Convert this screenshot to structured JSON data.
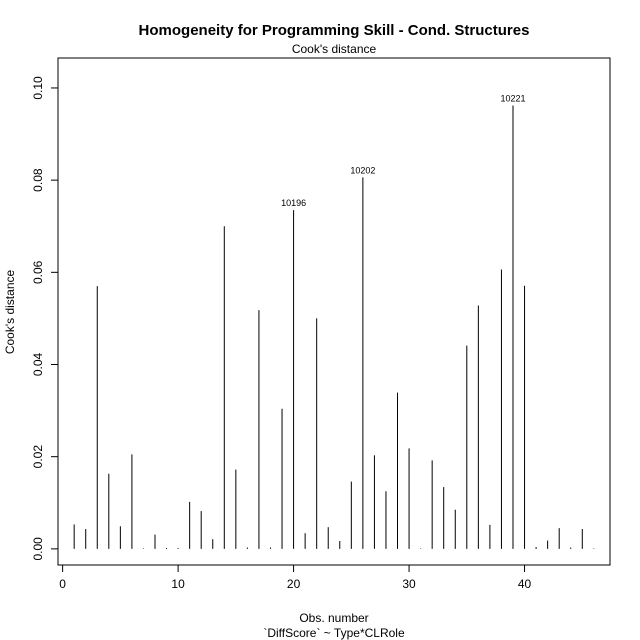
{
  "chart_data": {
    "type": "bar",
    "title": "Homogeneity for Programming Skill - Cond. Structures",
    "subtitle": "Cook's distance",
    "xlabel": "Obs. number",
    "caption": "`DiffScore` ~ Type*CLRole",
    "ylabel": "Cook's distance",
    "xlim": [
      -0.4,
      47.4
    ],
    "ylim": [
      -0.0035,
      0.1065
    ],
    "xticks": [
      0,
      10,
      20,
      30,
      40
    ],
    "yticks": [
      0.0,
      0.02,
      0.04,
      0.06,
      0.08,
      0.1
    ],
    "ytick_labels": [
      "0.00",
      "0.02",
      "0.04",
      "0.06",
      "0.08",
      "0.10"
    ],
    "grid": false,
    "x": [
      1,
      2,
      3,
      4,
      5,
      6,
      7,
      8,
      9,
      10,
      11,
      12,
      13,
      14,
      15,
      16,
      17,
      18,
      19,
      20,
      21,
      22,
      23,
      24,
      25,
      26,
      27,
      28,
      29,
      30,
      31,
      32,
      33,
      34,
      35,
      36,
      37,
      38,
      39,
      40,
      41,
      42,
      43,
      44,
      45,
      46
    ],
    "values": [
      0.0053,
      0.0043,
      0.057,
      0.0163,
      0.0049,
      0.0205,
      0.0001,
      0.0031,
      0.0002,
      0.0002,
      0.0102,
      0.0082,
      0.0021,
      0.07,
      0.0172,
      0.0003,
      0.0518,
      0.0003,
      0.0304,
      0.0735,
      0.0034,
      0.05,
      0.0047,
      0.0017,
      0.0146,
      0.0806,
      0.0203,
      0.0125,
      0.0339,
      0.0218,
      0.0001,
      0.0192,
      0.0134,
      0.0085,
      0.0441,
      0.0528,
      0.0052,
      0.0606,
      0.0962,
      0.0571,
      0.0004,
      0.0018,
      0.0045,
      0.0003,
      0.0043,
      0.0001
    ],
    "labels": [
      {
        "x": 20,
        "y": 0.0735,
        "text": "10196"
      },
      {
        "x": 26,
        "y": 0.0806,
        "text": "10202"
      },
      {
        "x": 39,
        "y": 0.0962,
        "text": "10221"
      }
    ]
  }
}
